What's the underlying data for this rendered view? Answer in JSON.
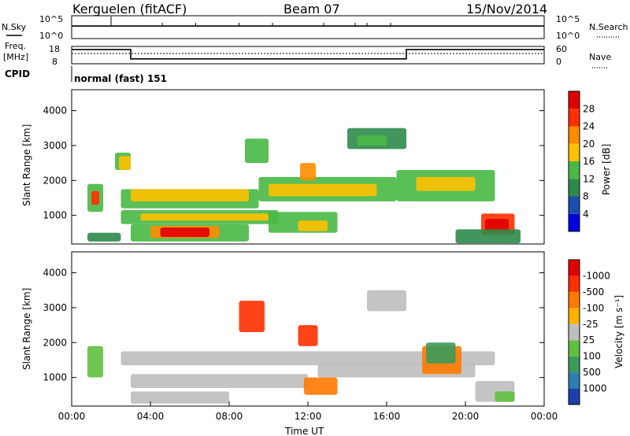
{
  "header": {
    "station": "Kerguelen (fitACF)",
    "beam": "Beam 07",
    "date": "15/Nov/2014"
  },
  "top_panels": {
    "nsky_label": "N.Sky",
    "nsky_ticks": [
      "10^5",
      "10^0"
    ],
    "nsearch_label": "N.Search",
    "nsearch_ticks": [
      "10^5",
      "10^0"
    ],
    "freq_label_line1": "Freq.",
    "freq_label_line2": "[MHz]",
    "freq_ticks": [
      "18",
      "8"
    ],
    "nave_label": "Nave",
    "nave_ticks": [
      "60",
      "0"
    ],
    "cpid_label": "CPID",
    "cpid_value": "normal (fast) 151"
  },
  "chart_data": [
    {
      "type": "heatmap",
      "title": "",
      "ylabel": "Slant Range [km]",
      "ylim": [
        180,
        4600
      ],
      "y_ticks": [
        "1000",
        "2000",
        "3000",
        "4000"
      ],
      "colorbar_label": "Power [dB]",
      "colorbar_ticks": [
        "4",
        "8",
        "12",
        "16",
        "20",
        "24",
        "28"
      ],
      "colors": [
        "#0000e0",
        "#1a4fb0",
        "#2e8a4a",
        "#49b845",
        "#ffc000",
        "#ff8c00",
        "#ff3000",
        "#e00000"
      ],
      "regions": [
        {
          "t": [
            0.8,
            1.6
          ],
          "r": [
            1100,
            1900
          ],
          "level": 3
        },
        {
          "t": [
            1.0,
            1.4
          ],
          "r": [
            1300,
            1700
          ],
          "level": 6
        },
        {
          "t": [
            2.2,
            3.0
          ],
          "r": [
            2300,
            2800
          ],
          "level": 3
        },
        {
          "t": [
            2.4,
            3.0
          ],
          "r": [
            2300,
            2700
          ],
          "level": 4
        },
        {
          "t": [
            2.5,
            9.5
          ],
          "r": [
            1200,
            1750
          ],
          "level": 3
        },
        {
          "t": [
            3.0,
            9.0
          ],
          "r": [
            1400,
            1750
          ],
          "level": 4
        },
        {
          "t": [
            9.5,
            16.5
          ],
          "r": [
            1400,
            2100
          ],
          "level": 3
        },
        {
          "t": [
            10.0,
            15.5
          ],
          "r": [
            1550,
            1900
          ],
          "level": 4
        },
        {
          "t": [
            16.5,
            21.5
          ],
          "r": [
            1400,
            2300
          ],
          "level": 3
        },
        {
          "t": [
            17.5,
            20.5
          ],
          "r": [
            1700,
            2100
          ],
          "level": 4
        },
        {
          "t": [
            2.5,
            10.5
          ],
          "r": [
            750,
            1150
          ],
          "level": 3
        },
        {
          "t": [
            3.5,
            10.0
          ],
          "r": [
            850,
            1050
          ],
          "level": 4
        },
        {
          "t": [
            10.0,
            13.5
          ],
          "r": [
            500,
            1100
          ],
          "level": 3
        },
        {
          "t": [
            11.5,
            13.0
          ],
          "r": [
            550,
            850
          ],
          "level": 4
        },
        {
          "t": [
            3.0,
            9.0
          ],
          "r": [
            250,
            750
          ],
          "level": 3
        },
        {
          "t": [
            4.0,
            7.5
          ],
          "r": [
            350,
            700
          ],
          "level": 5
        },
        {
          "t": [
            4.5,
            7.0
          ],
          "r": [
            380,
            650
          ],
          "level": 7
        },
        {
          "t": [
            8.8,
            10.0
          ],
          "r": [
            2500,
            3200
          ],
          "level": 3
        },
        {
          "t": [
            11.6,
            12.4
          ],
          "r": [
            2000,
            2500
          ],
          "level": 5
        },
        {
          "t": [
            14.0,
            17.0
          ],
          "r": [
            2900,
            3500
          ],
          "level": 2
        },
        {
          "t": [
            14.5,
            16.0
          ],
          "r": [
            3000,
            3300
          ],
          "level": 3
        },
        {
          "t": [
            20.8,
            22.5
          ],
          "r": [
            450,
            1050
          ],
          "level": 6
        },
        {
          "t": [
            21.0,
            22.2
          ],
          "r": [
            550,
            900
          ],
          "level": 7
        },
        {
          "t": [
            19.5,
            22.8
          ],
          "r": [
            200,
            600
          ],
          "level": 2
        },
        {
          "t": [
            0.8,
            2.5
          ],
          "r": [
            250,
            500
          ],
          "level": 2
        }
      ]
    },
    {
      "type": "heatmap",
      "title": "",
      "xlabel": "Time UT",
      "ylabel": "Slant Range [km]",
      "ylim": [
        180,
        4600
      ],
      "x_ticks": [
        "00:00",
        "04:00",
        "08:00",
        "12:00",
        "16:00",
        "20:00",
        "00:00"
      ],
      "y_ticks": [
        "1000",
        "2000",
        "3000",
        "4000"
      ],
      "colorbar_label": "Velocity [m s⁻¹]",
      "colorbar_ticks": [
        "1000",
        "500",
        "100",
        "25",
        "-25",
        "-100",
        "-500",
        "-1000"
      ],
      "colors": [
        "#1e3faa",
        "#2e7fb0",
        "#3c9a5a",
        "#62c040",
        "#bebebe",
        "#ffb000",
        "#ff7a00",
        "#ff3000",
        "#e00000"
      ],
      "regions": [
        {
          "t": [
            0.8,
            1.6
          ],
          "r": [
            1000,
            1900
          ],
          "level": 3
        },
        {
          "t": [
            2.5,
            21.5
          ],
          "r": [
            1350,
            1750
          ],
          "level": 4
        },
        {
          "t": [
            3.0,
            12.0
          ],
          "r": [
            700,
            1100
          ],
          "level": 4
        },
        {
          "t": [
            12.5,
            20.5
          ],
          "r": [
            1000,
            1400
          ],
          "level": 4
        },
        {
          "t": [
            8.5,
            9.8
          ],
          "r": [
            2300,
            3200
          ],
          "level": 7
        },
        {
          "t": [
            11.5,
            12.5
          ],
          "r": [
            1900,
            2500
          ],
          "level": 7
        },
        {
          "t": [
            11.8,
            13.5
          ],
          "r": [
            500,
            1000
          ],
          "level": 6
        },
        {
          "t": [
            15.0,
            17.0
          ],
          "r": [
            2900,
            3500
          ],
          "level": 4
        },
        {
          "t": [
            17.8,
            19.8
          ],
          "r": [
            1100,
            1900
          ],
          "level": 6
        },
        {
          "t": [
            18.0,
            19.5
          ],
          "r": [
            1400,
            2000
          ],
          "level": 2
        },
        {
          "t": [
            20.5,
            22.5
          ],
          "r": [
            300,
            900
          ],
          "level": 4
        },
        {
          "t": [
            21.5,
            22.5
          ],
          "r": [
            300,
            600
          ],
          "level": 3
        },
        {
          "t": [
            3.0,
            8.0
          ],
          "r": [
            250,
            600
          ],
          "level": 4
        }
      ]
    }
  ],
  "tick_strip": {
    "nsky_level": 0.55,
    "freq_profile": [
      {
        "t": 0.0,
        "v": 0.82
      },
      {
        "t": 3.0,
        "v": 0.82
      },
      {
        "t": 3.0,
        "v": 0.28
      },
      {
        "t": 17.0,
        "v": 0.28
      },
      {
        "t": 17.0,
        "v": 0.82
      },
      {
        "t": 24.0,
        "v": 0.82
      }
    ]
  }
}
